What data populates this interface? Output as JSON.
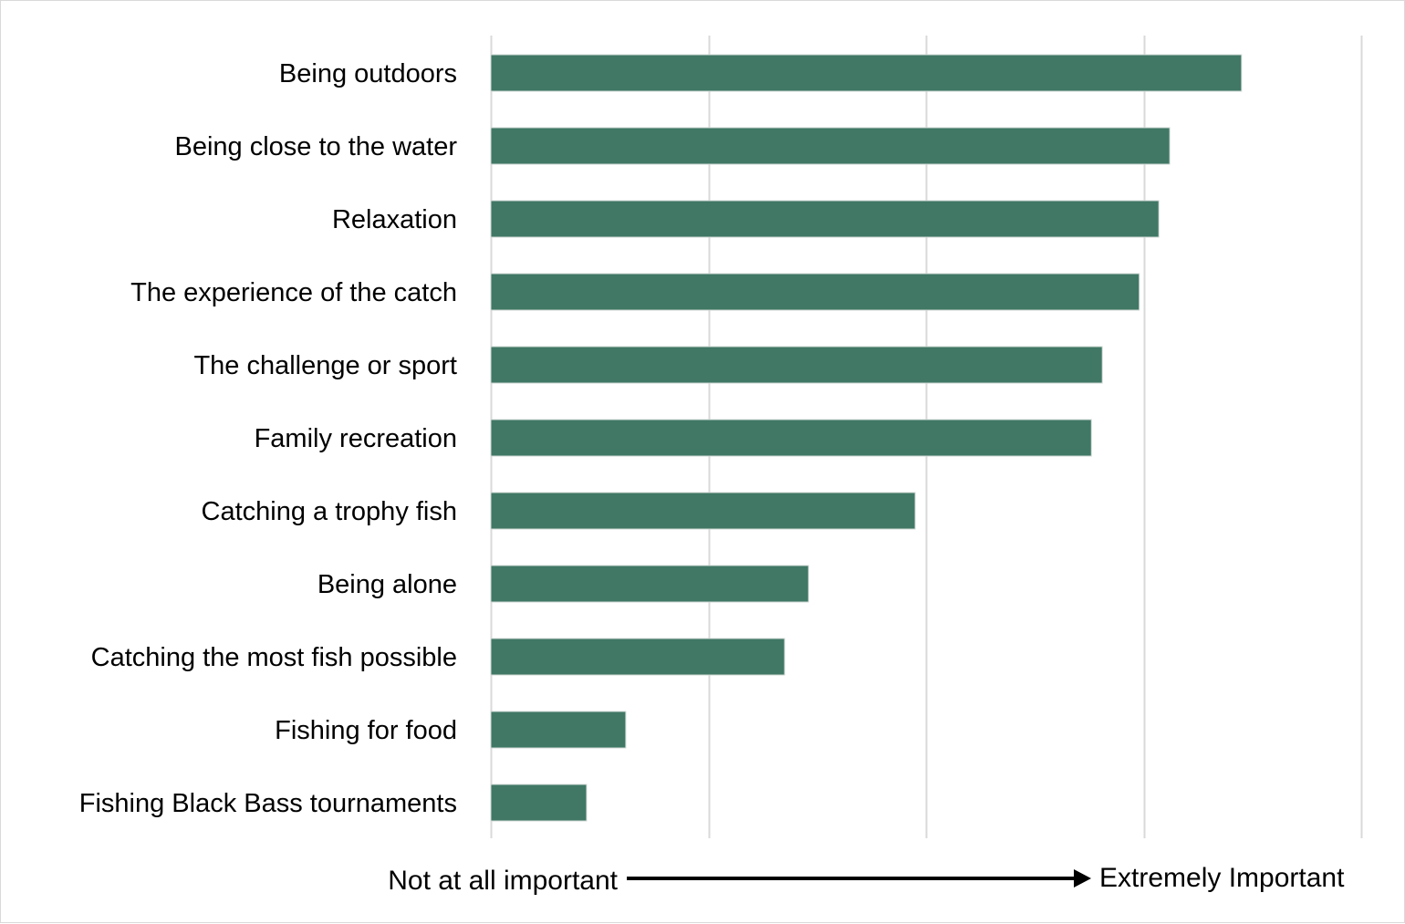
{
  "chart_data": {
    "type": "bar",
    "orientation": "horizontal",
    "title": "",
    "categories": [
      "Being outdoors",
      "Being close to the water",
      "Relaxation",
      "The experience of the catch",
      "The challenge or sport",
      "Family recreation",
      "Catching a trophy fish",
      "Being alone",
      "Catching the most fish possible",
      "Fishing for food",
      "Fishing Black Bass tournaments"
    ],
    "values": [
      4.45,
      4.12,
      4.07,
      3.98,
      3.81,
      3.76,
      2.95,
      2.46,
      2.35,
      1.62,
      1.44
    ],
    "xlim": [
      1,
      5
    ],
    "xticks": [
      1,
      2,
      3,
      4,
      5
    ],
    "grid": "vertical",
    "legend": "none",
    "xlabel_left": "Not at all important",
    "xlabel_right": "Extremely Important",
    "bar_color": "#407865",
    "grid_color": "#d9d9d9"
  }
}
